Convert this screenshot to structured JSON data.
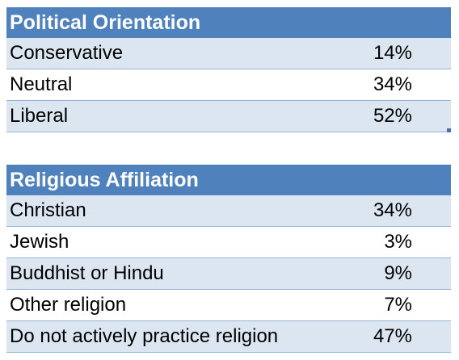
{
  "political": {
    "title": "Political Orientation",
    "rows": [
      {
        "label": "Conservative",
        "value": "14%"
      },
      {
        "label": "Neutral",
        "value": "34%"
      },
      {
        "label": "Liberal",
        "value": "52%"
      }
    ]
  },
  "religious": {
    "title": "Religious Affiliation",
    "rows": [
      {
        "label": "Christian",
        "value": "34%"
      },
      {
        "label": "Jewish",
        "value": "3%"
      },
      {
        "label": "Buddhist or Hindu",
        "value": "9%"
      },
      {
        "label": "Other religion",
        "value": "7%"
      },
      {
        "label": "Do not actively practice religion",
        "value": "47%"
      }
    ]
  },
  "colors": {
    "header": "#4f81bd",
    "band": "#dce6f1",
    "border": "#95b3d7"
  }
}
